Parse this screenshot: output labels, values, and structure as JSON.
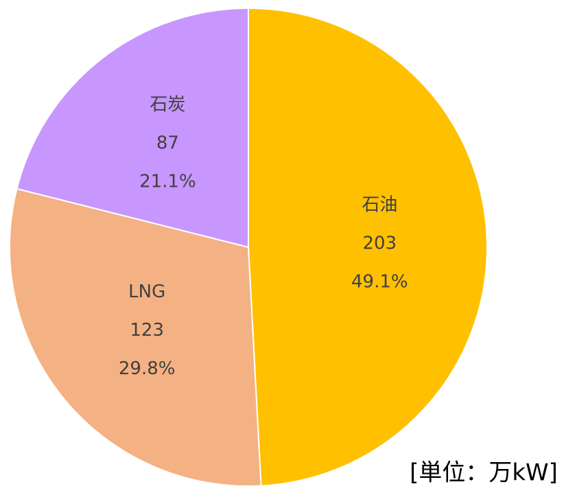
{
  "chart_data": {
    "type": "pie",
    "categories": [
      "石油",
      "LNG",
      "石炭"
    ],
    "values": [
      203,
      123,
      87
    ],
    "percents": [
      49.1,
      29.8,
      21.1
    ],
    "percent_labels": [
      "49.1%",
      "29.8%",
      "21.1%"
    ],
    "colors": [
      "#ffc000",
      "#f4b183",
      "#c896ff"
    ],
    "unit_note": "[単位：万kW]"
  }
}
